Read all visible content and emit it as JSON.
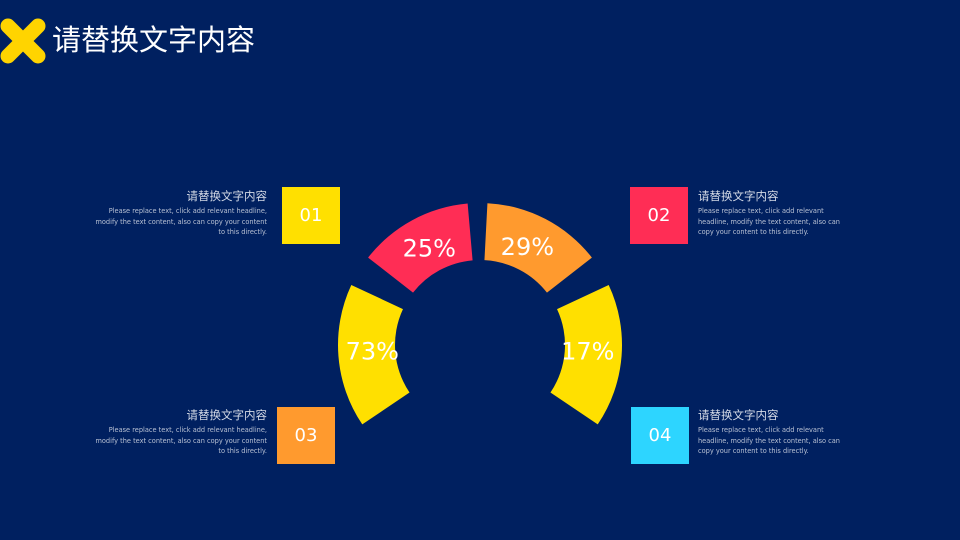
{
  "header": {
    "title": "请替换文字内容"
  },
  "colors": {
    "background": "#002060",
    "logo": "#FFD400",
    "yellow": "#FFE000",
    "red": "#FF2D55",
    "orange": "#FF9A2E",
    "cyan": "#2DD5FF"
  },
  "segments": [
    {
      "label": "25%",
      "color": "#FF2D55"
    },
    {
      "label": "29%",
      "color": "#FF9A2E"
    },
    {
      "label": "73%",
      "color": "#FFE000"
    },
    {
      "label": "17%",
      "color": "#FFE000"
    }
  ],
  "items": [
    {
      "number": "01",
      "title": "请替换文字内容",
      "body": "Please replace text, click add relevant headline, modify the text content, also can copy your content to this directly.",
      "color": "#FFE000"
    },
    {
      "number": "02",
      "title": "请替换文字内容",
      "body": "Please replace text, click add relevant headline, modify the text content, also can copy your content to this directly.",
      "color": "#FF2D55"
    },
    {
      "number": "03",
      "title": "请替换文字内容",
      "body": "Please replace text, click add relevant headline, modify the text content, also can copy your content to this directly.",
      "color": "#FF9A2E"
    },
    {
      "number": "04",
      "title": "请替换文字内容",
      "body": "Please replace text, click add relevant headline, modify the text content, also can copy your content to this directly.",
      "color": "#2DD5FF"
    }
  ]
}
